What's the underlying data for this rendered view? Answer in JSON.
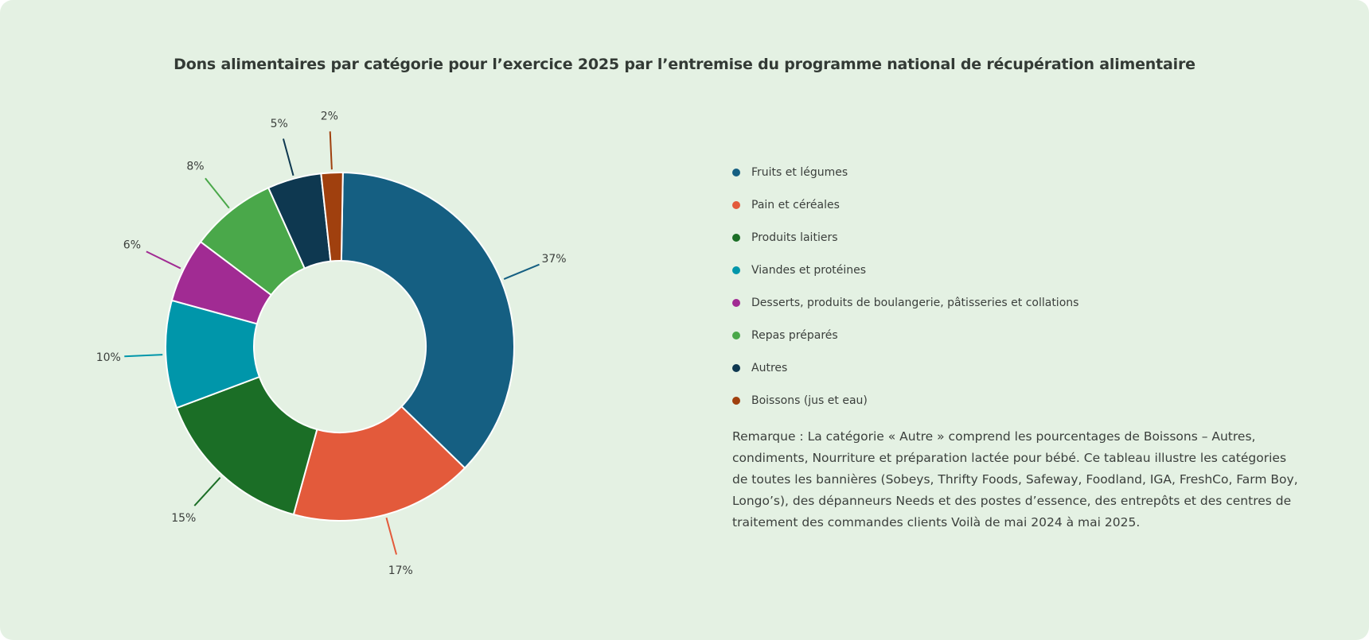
{
  "chart_data": {
    "type": "pie",
    "variant": "donut",
    "title": "Dons alimentaires par catégorie pour l’exercice 2025 par l’entremise du programme national de récupération alimentaire",
    "categories": [
      "Fruits et légumes",
      "Pain et céréales",
      "Produits laitiers",
      "Viandes et protéines",
      "Desserts, produits de boulangerie, pâtisseries et collations",
      "Repas préparés",
      "Autres",
      "Boissons (jus et eau)"
    ],
    "values": [
      37,
      17,
      15,
      10,
      6,
      8,
      5,
      2
    ],
    "labels": [
      "37%",
      "17%",
      "15%",
      "10%",
      "6%",
      "8%",
      "5%",
      "2%"
    ],
    "colors": [
      "#155f82",
      "#e35a3b",
      "#1b6e26",
      "#0096aa",
      "#a12b93",
      "#4aa84a",
      "#0e3850",
      "#a0400e"
    ],
    "legend_position": "right"
  },
  "note": "Remarque : La catégorie « Autre » comprend les pourcentages de Boissons – Autres, condiments, Nourriture et préparation lactée pour bébé. Ce tableau illustre les catégories de toutes les bannières (Sobeys, Thrifty Foods, Safeway, Foodland, IGA, FreshCo, Farm Boy, Longo’s), des dépanneurs Needs et des postes d’essence, des entrepôts et des centres de traitement des commandes clients Voilà de mai 2024 à mai 2025."
}
